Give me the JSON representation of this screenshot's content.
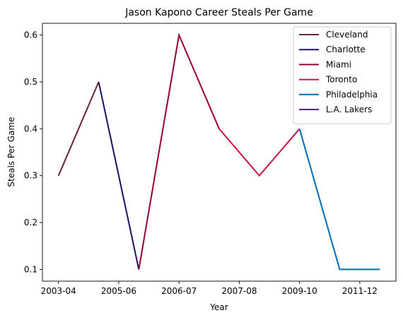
{
  "chart_data": {
    "type": "line",
    "title": "Jason Kapono Career Steals Per Game",
    "xlabel": "Year",
    "ylabel": "Steals Per Game",
    "x_tick_labels": [
      "2003-04",
      "2005-06",
      "2006-07",
      "2007-08",
      "2009-10",
      "2011-12"
    ],
    "y_ticks": [
      0.1,
      0.2,
      0.3,
      0.4,
      0.5,
      0.6
    ],
    "ylim": [
      0.075,
      0.625
    ],
    "grid": false,
    "legend_position": "top-right",
    "series": [
      {
        "name": "Cleveland",
        "color": "#6b2239",
        "points": [
          [
            0,
            0.3
          ],
          [
            1,
            0.5
          ]
        ]
      },
      {
        "name": "Charlotte",
        "color": "#1d1160",
        "points": [
          [
            1,
            0.5
          ],
          [
            2,
            0.1
          ]
        ]
      },
      {
        "name": "Miami",
        "color": "#98002e",
        "points": [
          [
            2,
            0.1
          ],
          [
            3,
            0.6
          ],
          [
            4,
            0.4
          ]
        ]
      },
      {
        "name": "Toronto",
        "color": "#ce1141",
        "points": [
          [
            4,
            0.4
          ],
          [
            5,
            0.3
          ],
          [
            6,
            0.4
          ]
        ]
      },
      {
        "name": "Philadelphia",
        "color": "#006bb6",
        "points": [
          [
            6,
            0.4
          ],
          [
            7,
            0.1
          ],
          [
            8,
            0.1
          ]
        ]
      },
      {
        "name": "L.A. Lakers",
        "color": "#552583",
        "points": []
      }
    ]
  }
}
